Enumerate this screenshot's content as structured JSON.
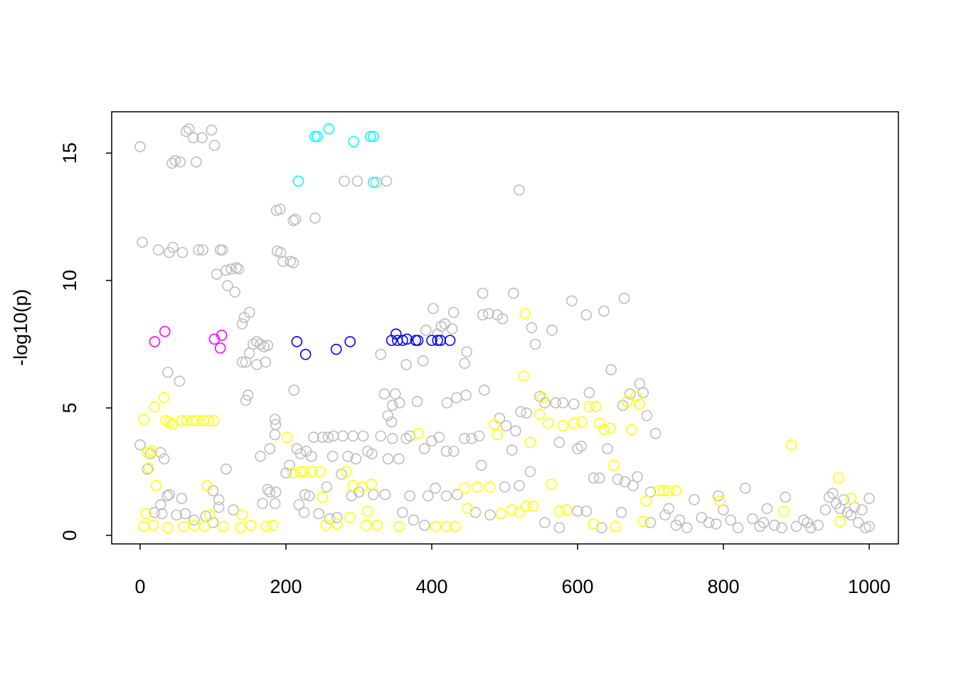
{
  "chart_data": {
    "type": "scatter",
    "ylabel": "-log10(p)",
    "xlim": [
      -39,
      1040
    ],
    "ylim": [
      -0.335,
      16.62
    ],
    "xticks": [
      0,
      200,
      400,
      600,
      800,
      1000
    ],
    "yticks": [
      0,
      5,
      10,
      15
    ],
    "series": [
      {
        "color": "#bebebe",
        "x": [
          0,
          63,
          67,
          73,
          85,
          98,
          102,
          44,
          48,
          55,
          77,
          3,
          25,
          40,
          45,
          58,
          80,
          86,
          110,
          113,
          105,
          118,
          125,
          132,
          120,
          130,
          135,
          140,
          143,
          150,
          155,
          160,
          165,
          170,
          175,
          145,
          150,
          160,
          172,
          140,
          38,
          54,
          145,
          148,
          185,
          186,
          185,
          165,
          178,
          0,
          14,
          28,
          33,
          10,
          118,
          40,
          37,
          57,
          100,
          108,
          108,
          28,
          20,
          30,
          50,
          62,
          74,
          90,
          100,
          128,
          175,
          178,
          186,
          185,
          168,
          187,
          192,
          210,
          213,
          240,
          188,
          193,
          196,
          206,
          210,
          280,
          298,
          324,
          338,
          211,
          215,
          220,
          228,
          235,
          238,
          250,
          258,
          265,
          278,
          292,
          306,
          264,
          285,
          296,
          312,
          318,
          200,
          205,
          226,
          232,
          218,
          225,
          245,
          260,
          270,
          256,
          276,
          290,
          300,
          320,
          336,
          330,
          335,
          340,
          346,
          350,
          345,
          356,
          330,
          346,
          355,
          340,
          365,
          370,
          390,
          400,
          410,
          420,
          430,
          445,
          455,
          365,
          380,
          388,
          392,
          402,
          408,
          413,
          418,
          428,
          430,
          445,
          448,
          434,
          447,
          421,
          370,
          395,
          405,
          420,
          435,
          360,
          375,
          390,
          465,
          468,
          472,
          470,
          478,
          470,
          490,
          497,
          493,
          502,
          510,
          515,
          522,
          512,
          520,
          530,
          535,
          537,
          542,
          548,
          555,
          565,
          570,
          575,
          580,
          592,
          595,
          600,
          605,
          612,
          616,
          622,
          630,
          636,
          641,
          646,
          655,
          665,
          662,
          664,
          672,
          676,
          682,
          690,
          685,
          695,
          700,
          707,
          500,
          520,
          460,
          480,
          555,
          575,
          600,
          612,
          633,
          660,
          700,
          720,
          740,
          760,
          770,
          780,
          793,
          800,
          810,
          820,
          830,
          840,
          850,
          860,
          870,
          880,
          885,
          900,
          910,
          920,
          930,
          940,
          945,
          950,
          955,
          965,
          975,
          985,
          990,
          1000,
          1000,
          995,
          750,
          790,
          725,
          735,
          855,
          915,
          960,
          970,
          980
        ],
        "values": [
          15.25,
          15.85,
          15.95,
          15.6,
          15.6,
          15.9,
          15.3,
          14.6,
          14.7,
          14.65,
          14.65,
          11.5,
          11.2,
          11.1,
          11.3,
          11.1,
          11.2,
          11.2,
          11.2,
          11.2,
          10.25,
          10.4,
          10.45,
          10.5,
          9.8,
          9.55,
          10.45,
          8.3,
          8.55,
          8.75,
          7.5,
          7.6,
          7.5,
          7.4,
          7.45,
          6.8,
          7.15,
          6.7,
          6.8,
          6.8,
          6.4,
          6.05,
          5.3,
          5.5,
          4.55,
          4.35,
          3.95,
          3.1,
          3.4,
          3.55,
          3.2,
          3.25,
          3.0,
          2.6,
          2.6,
          1.6,
          1.55,
          1.45,
          1.75,
          1.4,
          1.1,
          1.2,
          0.9,
          0.85,
          0.8,
          0.85,
          0.6,
          0.75,
          0.5,
          1.0,
          1.8,
          1.7,
          1.7,
          1.25,
          1.25,
          12.75,
          12.8,
          12.35,
          12.4,
          12.45,
          11.15,
          11.1,
          10.75,
          10.75,
          10.7,
          13.9,
          13.9,
          13.85,
          13.9,
          5.7,
          3.4,
          3.2,
          3.3,
          3.1,
          3.85,
          3.85,
          3.85,
          3.9,
          3.9,
          3.9,
          3.9,
          3.1,
          3.1,
          3.0,
          3.3,
          3.2,
          2.45,
          2.75,
          1.6,
          1.55,
          1.2,
          0.9,
          0.85,
          0.65,
          0.7,
          1.9,
          2.4,
          1.55,
          1.7,
          1.6,
          1.6,
          7.1,
          5.55,
          4.7,
          5.1,
          5.55,
          4.45,
          5.2,
          3.9,
          3.8,
          3.0,
          3.0,
          3.8,
          3.9,
          3.4,
          3.7,
          3.85,
          3.3,
          3.3,
          3.8,
          3.8,
          6.7,
          5.25,
          6.85,
          8.05,
          8.9,
          7.9,
          8.2,
          8.3,
          8.1,
          8.75,
          6.75,
          7.2,
          5.4,
          5.5,
          5.2,
          1.55,
          1.55,
          1.85,
          1.55,
          1.6,
          0.9,
          0.6,
          0.4,
          3.9,
          2.75,
          5.7,
          8.65,
          8.7,
          9.5,
          8.65,
          8.5,
          4.6,
          4.3,
          3.35,
          4.1,
          4.85,
          9.5,
          13.55,
          4.8,
          2.5,
          8.15,
          7.5,
          5.45,
          5.2,
          8.05,
          5.2,
          3.65,
          5.2,
          9.2,
          5.15,
          3.4,
          3.5,
          8.65,
          5.6,
          2.25,
          2.25,
          8.8,
          3.4,
          6.5,
          2.2,
          2.1,
          5.1,
          9.3,
          5.55,
          1.95,
          2.3,
          5.6,
          5.95,
          4.7,
          1.7,
          4.0,
          1.9,
          1.95,
          0.9,
          0.8,
          0.5,
          0.3,
          0.95,
          0.95,
          0.3,
          0.9,
          0.5,
          0.8,
          0.6,
          1.4,
          0.7,
          0.5,
          1.55,
          1.0,
          0.6,
          0.3,
          1.85,
          0.65,
          0.35,
          1.05,
          0.4,
          0.3,
          1.5,
          0.35,
          0.6,
          0.3,
          0.4,
          1.0,
          1.5,
          1.65,
          1.25,
          1.4,
          0.8,
          0.5,
          1.0,
          1.45,
          0.35,
          0.3,
          0.3,
          0.45,
          1.05,
          0.4,
          0.5,
          0.5,
          1.05,
          0.9,
          1.1
        ]
      },
      {
        "color": "#ffff00",
        "x": [
          5,
          8,
          10,
          12,
          16,
          20,
          22,
          33,
          35,
          40,
          44,
          57,
          64,
          72,
          78,
          87,
          94,
          101,
          5,
          18,
          38,
          60,
          75,
          88,
          92,
          95,
          114,
          138,
          140,
          152,
          173,
          182,
          202,
          210,
          220,
          225,
          236,
          247,
          250,
          255,
          270,
          283,
          288,
          292,
          305,
          310,
          312,
          317,
          325,
          355,
          382,
          405,
          420,
          432,
          445,
          449,
          462,
          480,
          486,
          490,
          495,
          510,
          520,
          526,
          528,
          530,
          535,
          539,
          548,
          552,
          560,
          564,
          575,
          580,
          585,
          595,
          606,
          616,
          622,
          625,
          630,
          636,
          645,
          650,
          652,
          668,
          674,
          680,
          685,
          690,
          694,
          712,
          718,
          725,
          735,
          795,
          883,
          893,
          958,
          960,
          975
        ],
        "values": [
          4.55,
          0.85,
          3.25,
          2.65,
          3.3,
          5.05,
          1.95,
          5.4,
          4.5,
          4.45,
          4.35,
          4.5,
          4.5,
          4.5,
          4.5,
          4.5,
          4.5,
          4.5,
          0.35,
          0.4,
          0.3,
          0.35,
          0.4,
          0.35,
          1.95,
          0.8,
          0.35,
          0.3,
          0.8,
          0.4,
          0.35,
          0.4,
          3.85,
          2.45,
          2.5,
          2.5,
          2.5,
          2.5,
          1.5,
          0.4,
          0.45,
          2.5,
          0.7,
          1.95,
          1.9,
          0.4,
          0.95,
          2.0,
          0.4,
          0.35,
          4.0,
          0.35,
          0.35,
          0.35,
          1.85,
          1.05,
          1.9,
          1.9,
          4.35,
          3.95,
          0.85,
          1.0,
          0.9,
          6.25,
          8.7,
          1.15,
          3.65,
          1.15,
          4.75,
          5.4,
          4.4,
          2.0,
          0.95,
          4.3,
          1.0,
          4.4,
          4.45,
          5.05,
          0.45,
          5.05,
          4.4,
          4.15,
          4.2,
          2.75,
          0.35,
          5.25,
          4.15,
          5.45,
          5.15,
          0.55,
          1.35,
          1.75,
          1.75,
          1.75,
          1.75,
          1.35,
          0.95,
          3.55,
          2.25,
          0.55,
          1.45
        ]
      },
      {
        "color": "#00ffff",
        "x": [
          240,
          243,
          259,
          293,
          316,
          320,
          217,
          320
        ],
        "values": [
          15.65,
          15.65,
          15.95,
          15.45,
          15.65,
          15.65,
          13.9,
          13.85
        ]
      },
      {
        "color": "#0000ff",
        "x": [
          215,
          227,
          269,
          288,
          345,
          351,
          353,
          360,
          366,
          378,
          381,
          400,
          408,
          412,
          425
        ],
        "values": [
          7.6,
          7.1,
          7.3,
          7.6,
          7.65,
          7.9,
          7.65,
          7.65,
          7.7,
          7.65,
          7.65,
          7.65,
          7.65,
          7.65,
          7.65
        ]
      },
      {
        "color": "#ff00ff",
        "x": [
          20,
          34,
          102,
          110,
          112
        ],
        "values": [
          7.6,
          8.0,
          7.7,
          7.35,
          7.85
        ]
      }
    ]
  }
}
